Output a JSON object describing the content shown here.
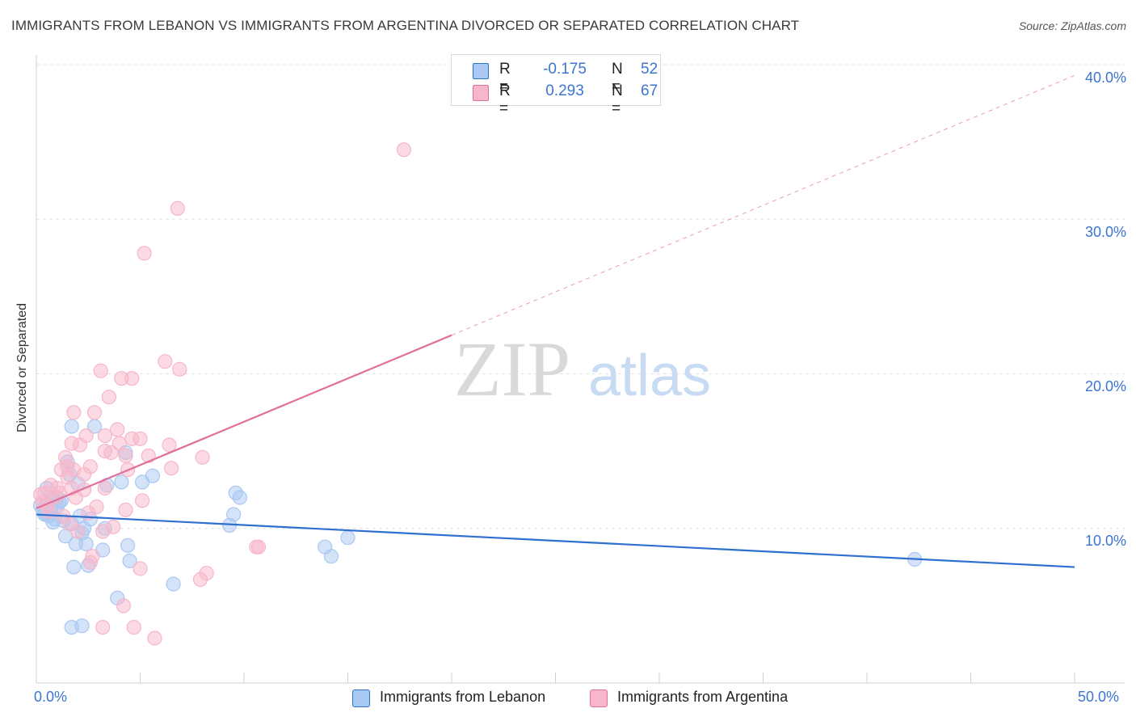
{
  "title": "IMMIGRANTS FROM LEBANON VS IMMIGRANTS FROM ARGENTINA DIVORCED OR SEPARATED CORRELATION CHART",
  "source": "Source: ZipAtlas.com",
  "watermark": {
    "zip": "ZIP",
    "atlas": "atlas"
  },
  "legend": {
    "rows": [
      {
        "r_label": "R =",
        "r_value": "-0.175",
        "n_label": "N =",
        "n_value": "52",
        "color": "#a9c8f2"
      },
      {
        "r_label": "R =",
        "r_value": "0.293",
        "n_label": "N =",
        "n_value": "67",
        "color": "#f7b6c9"
      }
    ]
  },
  "chart_data": {
    "type": "scatter",
    "title": "IMMIGRANTS FROM LEBANON VS IMMIGRANTS FROM ARGENTINA DIVORCED OR SEPARATED CORRELATION CHART",
    "xlabel": "",
    "ylabel": "Divorced or Separated",
    "xlim": [
      0,
      50
    ],
    "ylim": [
      0,
      40
    ],
    "x_tick_labels": [
      "0.0%",
      "50.0%"
    ],
    "y_ticks": [
      10,
      20,
      30,
      40
    ],
    "y_tick_labels": [
      "10.0%",
      "20.0%",
      "30.0%",
      "40.0%"
    ],
    "grid": true,
    "legend_placement": "bottom-center",
    "series": [
      {
        "name": "Immigrants from Lebanon",
        "color": "#a9c8f2",
        "line_color": "#2f6fd0",
        "r": -0.175,
        "n": 52,
        "trend": {
          "x": [
            0,
            50
          ],
          "y": [
            10.9,
            7.5
          ],
          "dashed_from": null
        },
        "points": [
          [
            0.2,
            11.5
          ],
          [
            0.3,
            11.2
          ],
          [
            0.4,
            11.0
          ],
          [
            0.5,
            11.6
          ],
          [
            0.6,
            10.8
          ],
          [
            0.7,
            11.3
          ],
          [
            0.8,
            11.9
          ],
          [
            0.9,
            10.6
          ],
          [
            1.0,
            11.4
          ],
          [
            1.2,
            11.8
          ],
          [
            1.3,
            10.5
          ],
          [
            1.5,
            14.3
          ],
          [
            1.6,
            13.5
          ],
          [
            1.4,
            9.5
          ],
          [
            1.8,
            7.5
          ],
          [
            1.9,
            9.0
          ],
          [
            2.0,
            12.9
          ],
          [
            1.7,
            10.3
          ],
          [
            2.2,
            9.7
          ],
          [
            2.3,
            10.0
          ],
          [
            2.4,
            9.0
          ],
          [
            2.5,
            7.6
          ],
          [
            2.6,
            10.6
          ],
          [
            2.1,
            10.8
          ],
          [
            2.8,
            16.6
          ],
          [
            1.7,
            16.6
          ],
          [
            3.2,
            8.6
          ],
          [
            3.3,
            10.0
          ],
          [
            3.4,
            12.8
          ],
          [
            3.9,
            5.5
          ],
          [
            4.1,
            13.0
          ],
          [
            4.3,
            14.9
          ],
          [
            4.4,
            8.9
          ],
          [
            4.5,
            7.9
          ],
          [
            5.1,
            13.0
          ],
          [
            5.6,
            13.4
          ],
          [
            6.6,
            6.4
          ],
          [
            9.6,
            12.3
          ],
          [
            9.8,
            12.0
          ],
          [
            9.3,
            10.2
          ],
          [
            9.5,
            10.9
          ],
          [
            13.9,
            8.8
          ],
          [
            14.2,
            8.2
          ],
          [
            15.0,
            9.4
          ],
          [
            1.7,
            3.6
          ],
          [
            2.2,
            3.7
          ],
          [
            42.3,
            8.0
          ],
          [
            0.5,
            12.6
          ],
          [
            0.8,
            10.4
          ],
          [
            1.1,
            11.7
          ],
          [
            0.4,
            10.9
          ],
          [
            1.0,
            12.0
          ]
        ]
      },
      {
        "name": "Immigrants from Argentina",
        "color": "#f7b6c9",
        "line_color": "#e0709a",
        "r": 0.293,
        "n": 67,
        "trend": {
          "x": [
            0,
            50
          ],
          "y": [
            11.3,
            39.3
          ],
          "dashed_from": 20
        },
        "points": [
          [
            17.7,
            34.5
          ],
          [
            6.8,
            30.7
          ],
          [
            5.2,
            27.8
          ],
          [
            6.2,
            20.8
          ],
          [
            6.9,
            20.3
          ],
          [
            3.1,
            20.2
          ],
          [
            4.1,
            19.7
          ],
          [
            4.6,
            19.7
          ],
          [
            3.5,
            18.5
          ],
          [
            1.8,
            17.5
          ],
          [
            2.8,
            17.5
          ],
          [
            3.9,
            16.4
          ],
          [
            2.4,
            16.0
          ],
          [
            3.3,
            16.0
          ],
          [
            5.0,
            15.8
          ],
          [
            4.6,
            15.8
          ],
          [
            1.7,
            15.5
          ],
          [
            6.4,
            15.4
          ],
          [
            2.1,
            15.4
          ],
          [
            3.3,
            15.0
          ],
          [
            4.3,
            14.7
          ],
          [
            5.4,
            14.7
          ],
          [
            3.6,
            14.9
          ],
          [
            1.4,
            14.6
          ],
          [
            8.0,
            14.6
          ],
          [
            1.5,
            14.0
          ],
          [
            2.6,
            14.0
          ],
          [
            1.2,
            13.8
          ],
          [
            1.8,
            13.8
          ],
          [
            6.5,
            13.9
          ],
          [
            4.4,
            13.8
          ],
          [
            2.3,
            13.5
          ],
          [
            1.5,
            13.3
          ],
          [
            0.7,
            12.8
          ],
          [
            1.0,
            12.6
          ],
          [
            1.7,
            12.6
          ],
          [
            2.3,
            12.5
          ],
          [
            3.3,
            12.6
          ],
          [
            0.4,
            12.3
          ],
          [
            0.9,
            12.0
          ],
          [
            1.9,
            12.0
          ],
          [
            5.1,
            11.8
          ],
          [
            0.3,
            11.7
          ],
          [
            2.9,
            11.4
          ],
          [
            4.3,
            11.2
          ],
          [
            0.6,
            11.1
          ],
          [
            1.3,
            10.8
          ],
          [
            1.6,
            10.3
          ],
          [
            2.0,
            9.8
          ],
          [
            3.2,
            9.8
          ],
          [
            3.7,
            10.1
          ],
          [
            2.7,
            8.2
          ],
          [
            2.6,
            7.8
          ],
          [
            5.0,
            7.4
          ],
          [
            8.2,
            7.1
          ],
          [
            7.9,
            6.7
          ],
          [
            10.6,
            8.8
          ],
          [
            10.7,
            8.8
          ],
          [
            4.2,
            5.0
          ],
          [
            3.2,
            3.6
          ],
          [
            4.7,
            3.6
          ],
          [
            5.7,
            2.9
          ],
          [
            0.2,
            12.2
          ],
          [
            0.5,
            11.5
          ],
          [
            2.5,
            11.0
          ],
          [
            1.1,
            12.3
          ],
          [
            4.0,
            15.5
          ]
        ]
      }
    ]
  }
}
